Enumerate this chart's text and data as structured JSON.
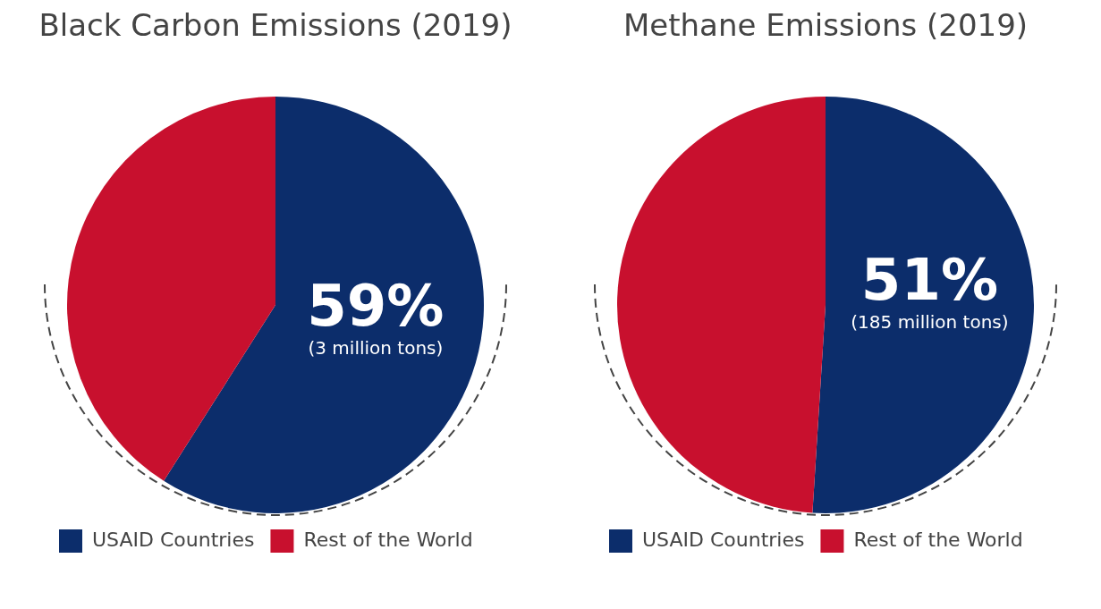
{
  "chart_data": [
    {
      "type": "pie",
      "title": "Black Carbon Emissions (2019)",
      "categories": [
        "USAID Countries",
        "Rest of the World"
      ],
      "values": [
        59,
        41
      ],
      "colors": [
        "#0c2d6b",
        "#c8102e"
      ],
      "value_labels": [
        "59%",
        null
      ],
      "annotations": [
        "(3 million tons)"
      ],
      "legend": "bottom"
    },
    {
      "type": "pie",
      "title": "Methane Emissions (2019)",
      "categories": [
        "USAID Countries",
        "Rest of the World"
      ],
      "values": [
        51,
        49
      ],
      "colors": [
        "#0c2d6b",
        "#c8102e"
      ],
      "value_labels": [
        "51%",
        null
      ],
      "annotations": [
        "(185 million tons)"
      ],
      "legend": "bottom"
    }
  ]
}
